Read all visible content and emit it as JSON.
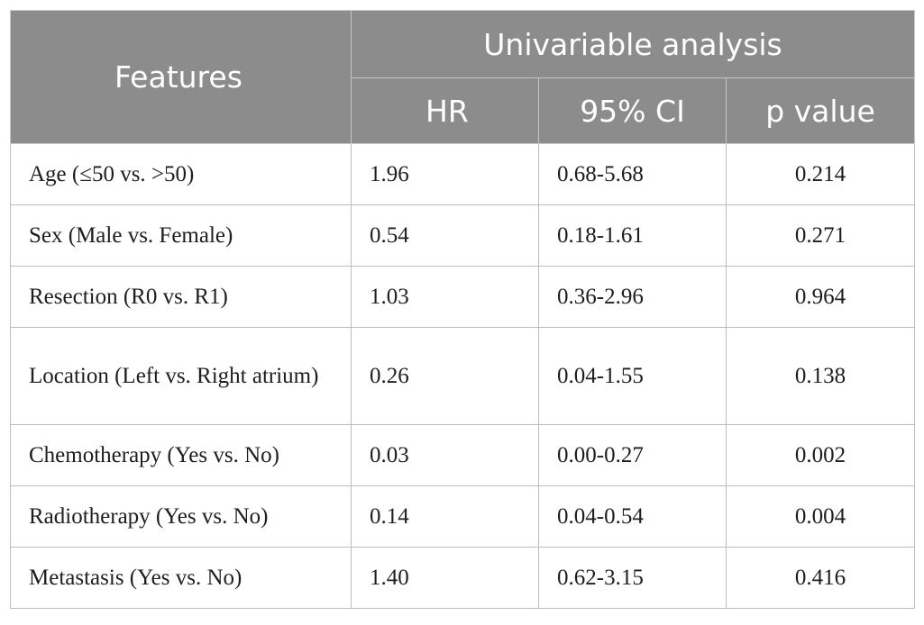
{
  "table": {
    "header": {
      "features": "Features",
      "group": "Univariable analysis",
      "columns": [
        "HR",
        "95% CI",
        "p value"
      ]
    },
    "rows": [
      {
        "feature": "Age (≤50 vs. >50)",
        "hr": "1.96",
        "ci": "0.68-5.68",
        "p": "0.214"
      },
      {
        "feature": "Sex (Male vs. Female)",
        "hr": "0.54",
        "ci": "0.18-1.61",
        "p": "0.271"
      },
      {
        "feature": "Resection (R0 vs. R1)",
        "hr": "1.03",
        "ci": "0.36-2.96",
        "p": "0.964"
      },
      {
        "feature": "Location (Left vs. Right atrium)",
        "hr": "0.26",
        "ci": "0.04-1.55",
        "p": "0.138"
      },
      {
        "feature": "Chemotherapy (Yes vs. No)",
        "hr": "0.03",
        "ci": "0.00-0.27",
        "p": "0.002"
      },
      {
        "feature": "Radiotherapy (Yes vs. No)",
        "hr": "0.14",
        "ci": "0.04-0.54",
        "p": "0.004"
      },
      {
        "feature": "Metastasis (Yes vs. No)",
        "hr": "1.40",
        "ci": "0.62-3.15",
        "p": "0.416"
      }
    ]
  }
}
